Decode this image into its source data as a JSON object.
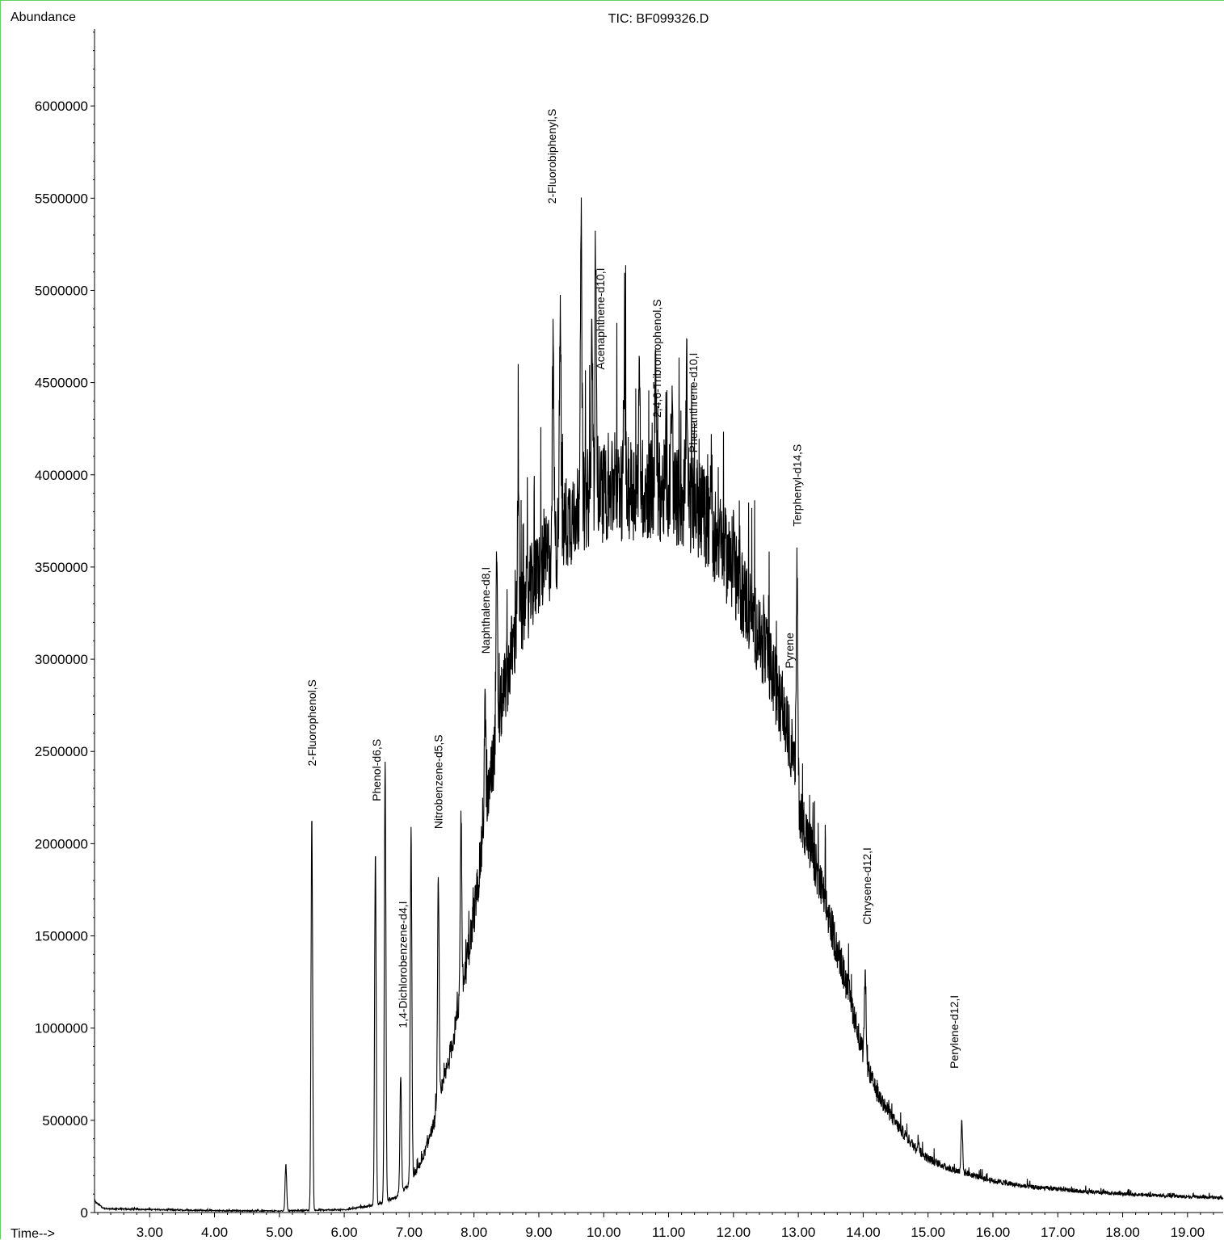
{
  "chart_data": {
    "type": "line",
    "title": "TIC: BF099326.D",
    "ylabel": "Abundance",
    "xlabel": "Time-->",
    "xlim": [
      2.15,
      19.55
    ],
    "ylim": [
      0,
      6500000
    ],
    "x_ticks": [
      3,
      4,
      5,
      6,
      7,
      8,
      9,
      10,
      11,
      12,
      13,
      14,
      15,
      16,
      17,
      18,
      19
    ],
    "x_tick_labels": [
      "3.00",
      "4.00",
      "5.00",
      "6.00",
      "7.00",
      "8.00",
      "9.00",
      "10.00",
      "11.00",
      "12.00",
      "13.00",
      "14.00",
      "15.00",
      "16.00",
      "17.00",
      "18.00",
      "19.00"
    ],
    "y_ticks": [
      0,
      500000,
      1000000,
      1500000,
      2000000,
      2500000,
      3000000,
      3500000,
      4000000,
      4500000,
      5000000,
      5500000,
      6000000
    ],
    "y_tick_labels": [
      "0",
      "500000",
      "1000000",
      "1500000",
      "2000000",
      "2500000",
      "3000000",
      "3500000",
      "4000000",
      "4500000",
      "5000000",
      "5500000",
      "6000000"
    ],
    "grid": false,
    "baseline_envelope": [
      [
        2.15,
        60000
      ],
      [
        2.3,
        20000
      ],
      [
        4.0,
        10000
      ],
      [
        5.0,
        8000
      ],
      [
        6.0,
        15000
      ],
      [
        6.5,
        40000
      ],
      [
        6.8,
        80000
      ],
      [
        7.0,
        150000
      ],
      [
        7.2,
        280000
      ],
      [
        7.4,
        500000
      ],
      [
        7.6,
        800000
      ],
      [
        7.8,
        1150000
      ],
      [
        8.0,
        1600000
      ],
      [
        8.2,
        2200000
      ],
      [
        8.4,
        2700000
      ],
      [
        8.6,
        3050000
      ],
      [
        8.8,
        3300000
      ],
      [
        9.0,
        3450000
      ],
      [
        9.2,
        3550000
      ],
      [
        9.4,
        3700000
      ],
      [
        9.6,
        3800000
      ],
      [
        9.8,
        3850000
      ],
      [
        10.0,
        3880000
      ],
      [
        10.5,
        3900000
      ],
      [
        11.0,
        3880000
      ],
      [
        11.5,
        3780000
      ],
      [
        11.8,
        3600000
      ],
      [
        12.0,
        3450000
      ],
      [
        12.3,
        3200000
      ],
      [
        12.6,
        2900000
      ],
      [
        12.9,
        2500000
      ],
      [
        13.0,
        2200000
      ],
      [
        13.2,
        1950000
      ],
      [
        13.5,
        1550000
      ],
      [
        13.8,
        1150000
      ],
      [
        14.0,
        850000
      ],
      [
        14.2,
        650000
      ],
      [
        14.5,
        480000
      ],
      [
        14.8,
        350000
      ],
      [
        15.0,
        290000
      ],
      [
        15.3,
        240000
      ],
      [
        15.6,
        210000
      ],
      [
        16.0,
        170000
      ],
      [
        16.5,
        140000
      ],
      [
        17.0,
        125000
      ],
      [
        17.5,
        110000
      ],
      [
        18.0,
        100000
      ],
      [
        18.5,
        92000
      ],
      [
        19.0,
        85000
      ],
      [
        19.55,
        78000
      ]
    ],
    "peaks": [
      {
        "x": 5.1,
        "y": 260000
      },
      {
        "x": 5.5,
        "y": 2150000
      },
      {
        "x": 6.48,
        "y": 1960000
      },
      {
        "x": 6.63,
        "y": 2440000
      },
      {
        "x": 6.87,
        "y": 730000
      },
      {
        "x": 7.03,
        "y": 2090000
      },
      {
        "x": 7.45,
        "y": 1810000
      },
      {
        "x": 7.8,
        "y": 2140000
      },
      {
        "x": 8.17,
        "y": 2750000
      },
      {
        "x": 8.35,
        "y": 3450000
      },
      {
        "x": 8.68,
        "y": 3960000
      },
      {
        "x": 9.22,
        "y": 4650000
      },
      {
        "x": 9.33,
        "y": 4850000
      },
      {
        "x": 9.65,
        "y": 5350000
      },
      {
        "x": 9.82,
        "y": 4750000
      },
      {
        "x": 9.88,
        "y": 5030000
      },
      {
        "x": 10.32,
        "y": 4560000
      },
      {
        "x": 10.55,
        "y": 4400000
      },
      {
        "x": 10.8,
        "y": 4500000
      },
      {
        "x": 11.05,
        "y": 4370000
      },
      {
        "x": 11.28,
        "y": 4440000
      },
      {
        "x": 11.65,
        "y": 4020000
      },
      {
        "x": 12.0,
        "y": 3650000
      },
      {
        "x": 12.98,
        "y": 3440000
      },
      {
        "x": 14.03,
        "y": 1280000
      },
      {
        "x": 14.85,
        "y": 400000
      },
      {
        "x": 15.52,
        "y": 500000
      }
    ],
    "annotations": [
      {
        "label": "2-Fluorophenol,S",
        "x": 5.5,
        "y": 2420000
      },
      {
        "label": "Phenol-d6,S",
        "x": 6.5,
        "y": 2230000
      },
      {
        "label": "1,4-Dichlorobenzene-d4,I",
        "x": 6.9,
        "y": 1000000
      },
      {
        "label": "Nitrobenzene-d5,S",
        "x": 7.45,
        "y": 2080000
      },
      {
        "label": "Naphthalene-d8,I",
        "x": 8.18,
        "y": 3030000
      },
      {
        "label": "2-Fluorobiphenyl,S",
        "x": 9.2,
        "y": 5470000
      },
      {
        "label": "Acenaphthene-d10,I",
        "x": 9.95,
        "y": 4570000
      },
      {
        "label": "2,4,6-Tribromophenol,S",
        "x": 10.82,
        "y": 4310000
      },
      {
        "label": "Phenanthrene-d10,I",
        "x": 11.38,
        "y": 4120000
      },
      {
        "label": "Terphenyl-d14,S",
        "x": 12.98,
        "y": 3720000
      },
      {
        "label": "Pyrene",
        "x": 12.86,
        "y": 2950000
      },
      {
        "label": "Chrysene-d12,I",
        "x": 14.06,
        "y": 1560000
      },
      {
        "label": "Perylene-d12,I",
        "x": 15.4,
        "y": 780000
      }
    ]
  }
}
